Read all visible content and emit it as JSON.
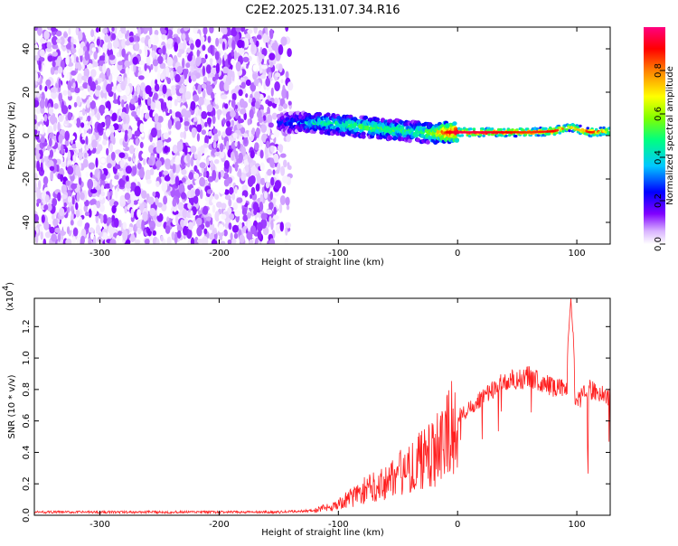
{
  "title": "C2E2.2025.131.07.34.R16",
  "chart_data": [
    {
      "type": "heatmap",
      "xlabel": "Height of straight line (km)",
      "ylabel": "Frequency (Hz)",
      "xlim": [
        -355,
        128
      ],
      "ylim": [
        -50,
        50
      ],
      "xticks": [
        -300,
        -200,
        -100,
        0,
        100
      ],
      "yticks": [
        -40,
        -20,
        0,
        20,
        40
      ],
      "colorbar": {
        "label": "Normalized spectral amplitude",
        "range": [
          0,
          1
        ],
        "ticks": [
          0.0,
          0.2,
          0.4,
          0.6,
          0.8
        ],
        "tick_labels": [
          "0.0",
          "0.2",
          "0.4",
          "0.6",
          "0.8"
        ],
        "colors": [
          "#ffffff",
          "#d9b3ff",
          "#8000ff",
          "#0000ff",
          "#00c8ff",
          "#00ff80",
          "#80ff00",
          "#ffff00",
          "#ff8000",
          "#ff0000",
          "#ff0080"
        ]
      },
      "regions": [
        {
          "x": [
            -355,
            -140
          ],
          "y": [
            -50,
            50
          ],
          "amplitude": [
            0.0,
            0.2
          ],
          "description": "noise"
        },
        {
          "x": [
            -150,
            0
          ],
          "y": [
            -10,
            12
          ],
          "amplitude": [
            0.1,
            0.7
          ]
        },
        {
          "x": [
            0,
            128
          ],
          "y": [
            0,
            4
          ],
          "amplitude": [
            0.5,
            1.0
          ]
        }
      ],
      "ridge": {
        "x": [
          -150,
          -120,
          -100,
          -80,
          -60,
          -40,
          -20,
          -10,
          0,
          20,
          40,
          60,
          80,
          95,
          110,
          128
        ],
        "freq": [
          6,
          6,
          5,
          4,
          3,
          2,
          1,
          1.5,
          1.5,
          1.5,
          1.5,
          1.5,
          2,
          4,
          1.5,
          2
        ],
        "amplitude": [
          0.25,
          0.45,
          0.5,
          0.55,
          0.55,
          0.5,
          0.6,
          0.9,
          0.95,
          0.95,
          0.9,
          0.85,
          0.9,
          0.7,
          0.9,
          0.7
        ]
      }
    },
    {
      "type": "line",
      "xlabel": "Height of straight line (km)",
      "ylabel": "SNR (10 * v/v)",
      "y_multiplier": "(x10",
      "y_multiplier_exp": "4",
      "xlim": [
        -355,
        128
      ],
      "ylim": [
        0,
        1.38
      ],
      "xticks": [
        -300,
        -200,
        -100,
        0,
        100
      ],
      "yticks": [
        0.0,
        0.2,
        0.4,
        0.6,
        0.8,
        1.0,
        1.2
      ],
      "series": [
        {
          "color": "#ff2020",
          "x": [
            -355,
            -300,
            -250,
            -200,
            -150,
            -120,
            -100,
            -80,
            -60,
            -40,
            -20,
            -10,
            0,
            20,
            40,
            60,
            80,
            90,
            95,
            100,
            110,
            120,
            128
          ],
          "y": [
            0.02,
            0.02,
            0.02,
            0.02,
            0.02,
            0.03,
            0.07,
            0.15,
            0.22,
            0.3,
            0.4,
            0.5,
            0.62,
            0.75,
            0.85,
            0.88,
            0.82,
            0.8,
            1.38,
            0.72,
            0.8,
            0.78,
            0.75
          ]
        }
      ]
    }
  ]
}
